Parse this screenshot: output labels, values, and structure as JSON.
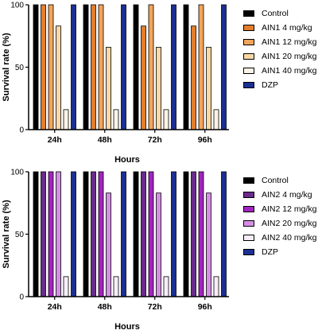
{
  "chart_data": [
    {
      "type": "bar",
      "title": "",
      "xlabel": "Hours",
      "ylabel": "Survival rate (%)",
      "ylim": [
        0,
        100
      ],
      "yticks": [
        "0",
        "50",
        "100"
      ],
      "categories": [
        "24h",
        "48h",
        "72h",
        "96h"
      ],
      "series": [
        {
          "name": "Control",
          "color": "#000000",
          "values": [
            100,
            100,
            100,
            100
          ]
        },
        {
          "name": "AIN1 4 mg/kg",
          "color": "#e47e2c",
          "values": [
            100,
            100,
            83,
            83
          ]
        },
        {
          "name": "AIN1 12 mg/kg",
          "color": "#f2a55a",
          "values": [
            100,
            100,
            100,
            100
          ]
        },
        {
          "name": "AIN1 20 mg/kg",
          "color": "#f9d8a6",
          "values": [
            83,
            66,
            66,
            66
          ]
        },
        {
          "name": "AIN1 40 mg/kg",
          "color": "#fbf3e6",
          "values": [
            16,
            16,
            16,
            16
          ]
        },
        {
          "name": "DZP",
          "color": "#1c2f95",
          "values": [
            100,
            100,
            100,
            100
          ]
        }
      ],
      "legend_position": "right"
    },
    {
      "type": "bar",
      "title": "",
      "xlabel": "Hours",
      "ylabel": "Survival rate (%)",
      "ylim": [
        0,
        100
      ],
      "yticks": [
        "0",
        "50",
        "100"
      ],
      "categories": [
        "24h",
        "48h",
        "72h",
        "96h"
      ],
      "series": [
        {
          "name": "Control",
          "color": "#000000",
          "values": [
            100,
            100,
            100,
            100
          ]
        },
        {
          "name": "AIN2 4 mg/kg",
          "color": "#6a2b8c",
          "values": [
            100,
            100,
            100,
            100
          ]
        },
        {
          "name": "AIN2 12 mg/kg",
          "color": "#a224bf",
          "values": [
            100,
            100,
            100,
            100
          ]
        },
        {
          "name": "AIN2 20 mg/kg",
          "color": "#d58ee6",
          "values": [
            100,
            83,
            83,
            83
          ]
        },
        {
          "name": "AIN2 40 mg/kg",
          "color": "#f8eef9",
          "values": [
            16,
            16,
            16,
            16
          ]
        },
        {
          "name": "DZP",
          "color": "#1c2f95",
          "values": [
            100,
            100,
            100,
            100
          ]
        }
      ],
      "legend_position": "right"
    }
  ]
}
